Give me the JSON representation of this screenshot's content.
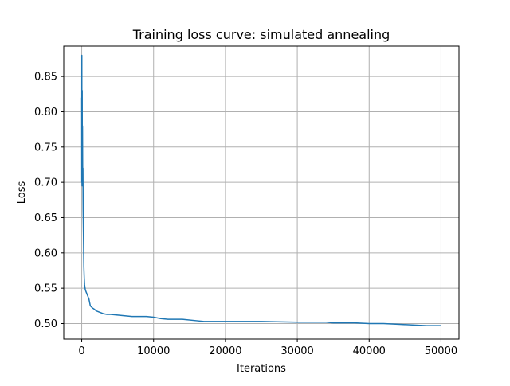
{
  "chart_data": {
    "type": "line",
    "title": "Training loss curve: simulated annealing",
    "xlabel": "Iterations",
    "ylabel": "Loss",
    "xlim": [
      -2500,
      52500
    ],
    "ylim": [
      0.478,
      0.893
    ],
    "grid": true,
    "legend": "none",
    "x_ticks": [
      0,
      10000,
      20000,
      30000,
      40000,
      50000
    ],
    "x_tick_labels": [
      "0",
      "10000",
      "20000",
      "30000",
      "40000",
      "50000"
    ],
    "y_ticks": [
      0.5,
      0.55,
      0.6,
      0.65,
      0.7,
      0.75,
      0.8,
      0.85
    ],
    "y_tick_labels": [
      "0.50",
      "0.55",
      "0.60",
      "0.65",
      "0.70",
      "0.75",
      "0.80",
      "0.85"
    ],
    "colors": {
      "line": "#1f77b4",
      "grid": "#b0b0b0",
      "axes": "#000000"
    },
    "series": [
      {
        "x": [
          0,
          10,
          20,
          30,
          40,
          55,
          70,
          90,
          110,
          140,
          170,
          200,
          250,
          300,
          350,
          400,
          500,
          600,
          800,
          1000,
          1200,
          1500,
          1800,
          2000,
          2500,
          3000,
          3500,
          4000,
          5000,
          6000,
          7000,
          8000,
          9000,
          10000,
          11000,
          12000,
          14000,
          16000,
          17000,
          20000,
          25000,
          30000,
          34000,
          35000,
          38000,
          40000,
          42000,
          44000,
          46000,
          48000,
          50000
        ],
        "y": [
          0.82,
          0.7,
          0.88,
          0.72,
          0.8,
          0.695,
          0.83,
          0.71,
          0.78,
          0.7,
          0.72,
          0.66,
          0.62,
          0.58,
          0.565,
          0.555,
          0.548,
          0.545,
          0.54,
          0.535,
          0.525,
          0.522,
          0.52,
          0.518,
          0.516,
          0.514,
          0.513,
          0.513,
          0.512,
          0.511,
          0.51,
          0.51,
          0.51,
          0.509,
          0.507,
          0.506,
          0.506,
          0.504,
          0.503,
          0.503,
          0.503,
          0.502,
          0.502,
          0.501,
          0.501,
          0.5,
          0.5,
          0.499,
          0.498,
          0.497,
          0.497
        ]
      }
    ]
  }
}
